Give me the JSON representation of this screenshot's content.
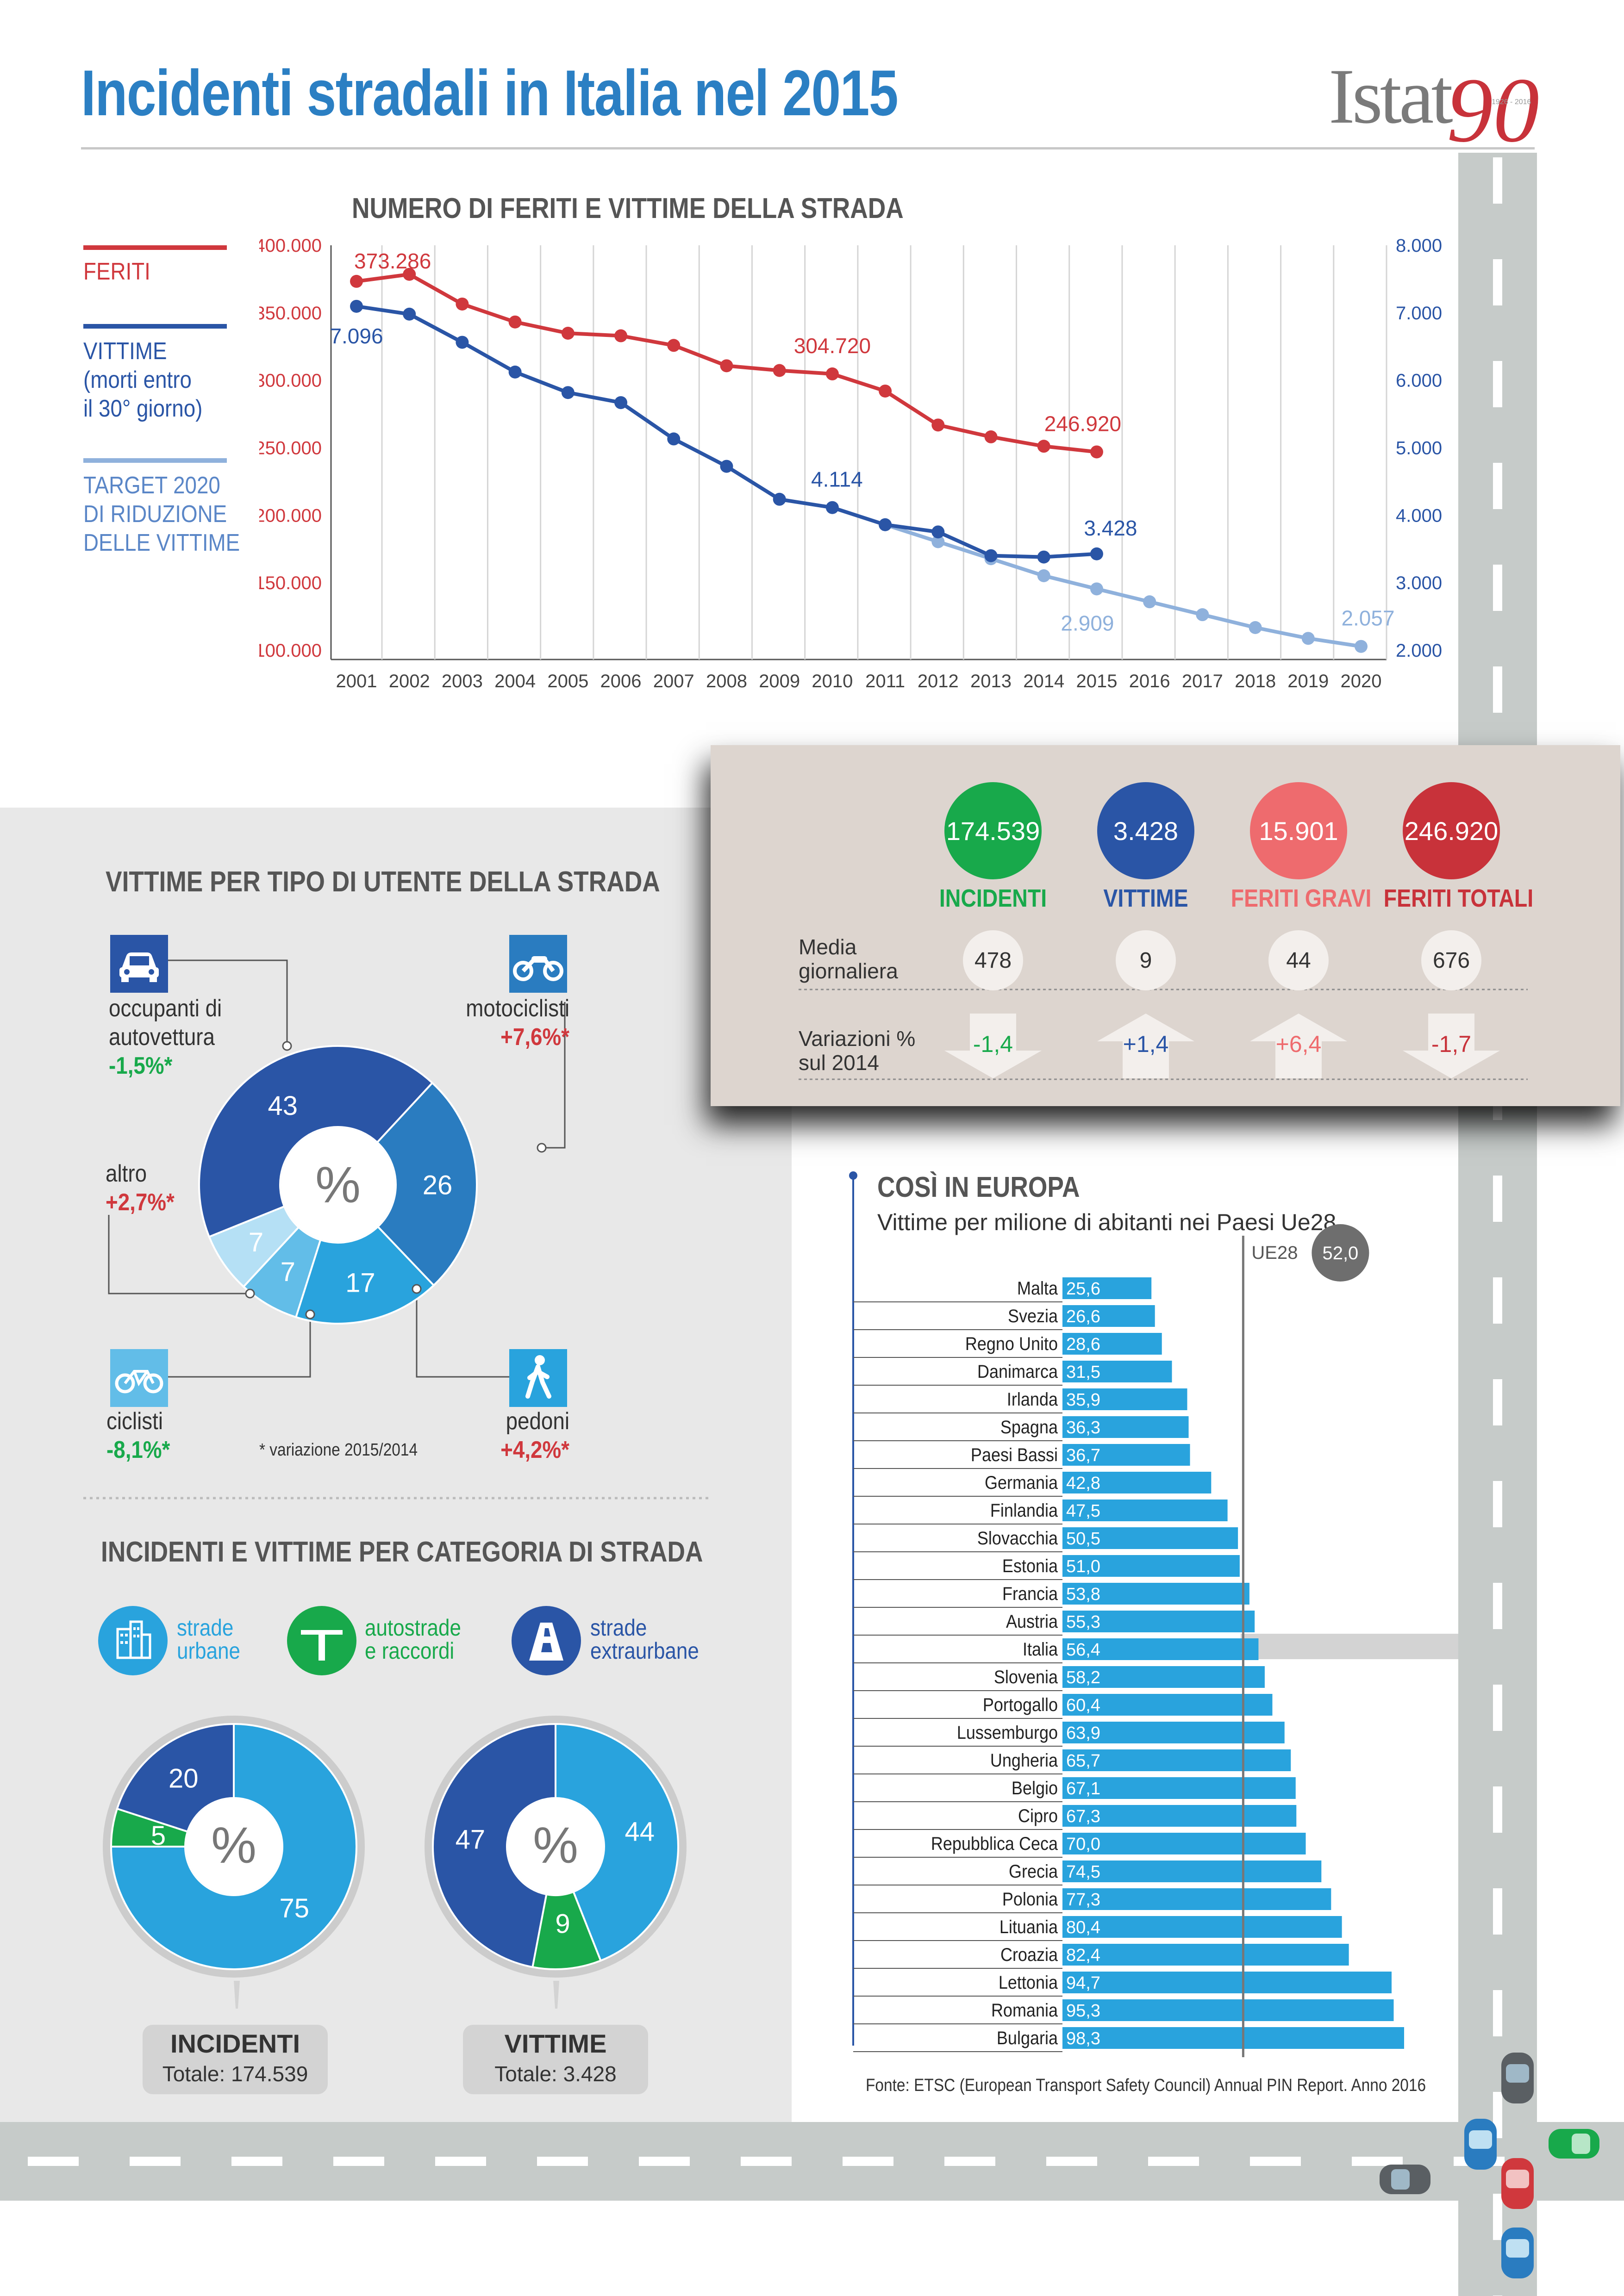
{
  "title": "Incidenti stradali in Italia nel 2015",
  "logo": {
    "text": "Istat",
    "mark": "90",
    "years": "1926 - 2016"
  },
  "colors": {
    "red": "#d0383d",
    "blue": "#2a55a6",
    "lightblue": "#8fb1dc",
    "cyan": "#29a3dd",
    "green": "#18a94b",
    "grey": "#8a8a8a"
  },
  "line_section": {
    "title": "NUMERO DI FERITI E VITTIME DELLA STRADA",
    "legend": {
      "feriti": "FERITI",
      "vittime": [
        "VITTIME",
        "(morti entro",
        "il 30° giorno)"
      ],
      "target": [
        "TARGET 2020",
        "DI RIDUZIONE",
        "DELLE VITTIME"
      ]
    }
  },
  "kpi": {
    "items": [
      {
        "value": "174.539",
        "label": "INCIDENTI",
        "daily": "478",
        "variation": "-1,4",
        "direction": "down",
        "color": "#18a94b",
        "label_color": "#18a94b"
      },
      {
        "value": "3.428",
        "label": "VITTIME",
        "daily": "9",
        "variation": "+1,4",
        "direction": "up",
        "color": "#2a55a6",
        "label_color": "#2a55a6"
      },
      {
        "value": "15.901",
        "label": "FERITI GRAVI",
        "daily": "44",
        "variation": "+6,4",
        "direction": "up",
        "color": "#ee6b6e",
        "label_color": "#ee6b6e"
      },
      {
        "value": "246.920",
        "label": "FERITI TOTALI",
        "daily": "676",
        "variation": "-1,7",
        "direction": "down",
        "color": "#c8323a",
        "label_color": "#c8323a"
      }
    ],
    "daily_label": [
      "Media",
      "giornaliera"
    ],
    "variation_label": [
      "Variazioni %",
      "sul 2014"
    ]
  },
  "user_section": {
    "title": "VITTIME PER TIPO DI UTENTE DELLA STRADA",
    "center": "%",
    "footnote": "* variazione 2015/2014",
    "callouts": [
      {
        "icon": "car-icon",
        "label": [
          "occupanti di",
          "autovettura"
        ],
        "change": "-1,5%*",
        "change_color": "#18a94b"
      },
      {
        "icon": "motorcycle-icon",
        "label": [
          "motociclisti"
        ],
        "change": "+7,6%*",
        "change_color": "#d0383d"
      },
      {
        "icon": "pedestrian-icon",
        "label": [
          "pedoni"
        ],
        "change": "+4,2%*",
        "change_color": "#d0383d"
      },
      {
        "icon": "bicycle-icon",
        "label": [
          "ciclisti"
        ],
        "change": "-8,1%*",
        "change_color": "#18a94b"
      },
      {
        "icon": "",
        "label": [
          "altro"
        ],
        "change": "+2,7%*",
        "change_color": "#d0383d"
      }
    ]
  },
  "road_section": {
    "title": "INCIDENTI E VITTIME PER CATEGORIA DI STRADA",
    "legend": [
      {
        "icon": "city-buildings-icon",
        "label": [
          "strade",
          "urbane"
        ],
        "color": "#29a3dd"
      },
      {
        "icon": "motorway-icon",
        "label": [
          "autostrade",
          "e raccordi"
        ],
        "color": "#18a94b"
      },
      {
        "icon": "rural-road-icon",
        "label": [
          "strade",
          "extraurbane"
        ],
        "color": "#2a55a6"
      }
    ],
    "center": "%",
    "donuts": [
      {
        "name": "INCIDENTI",
        "total": "Totale: 174.539"
      },
      {
        "name": "VITTIME",
        "total": "Totale: 3.428"
      }
    ]
  },
  "europe_section": {
    "title": "COSÌ IN EUROPA",
    "subtitle": "Vittime per milione di abitanti nei Paesi Ue28",
    "source": "Fonte: ETSC (European Transport Safety Council) Annual PIN Report. Anno 2016",
    "ue28_label": "UE28",
    "ue28_value": "52,0",
    "highlight": "Italia"
  },
  "chart_data": [
    {
      "type": "line",
      "title": "NUMERO DI FERITI E VITTIME DELLA STRADA",
      "x": [
        2001,
        2002,
        2003,
        2004,
        2005,
        2006,
        2007,
        2008,
        2009,
        2010,
        2011,
        2012,
        2013,
        2014,
        2015,
        2016,
        2017,
        2018,
        2019,
        2020
      ],
      "y_left": {
        "ylim": [
          100000,
          400000
        ],
        "ticks": [
          "100.000",
          "150.000",
          "200.000",
          "250.000",
          "300.000",
          "350.000",
          "400.000"
        ]
      },
      "y_right": {
        "ylim": [
          2000,
          8000
        ],
        "ticks": [
          "2.000",
          "3.000",
          "4.000",
          "5.000",
          "6.000",
          "7.000",
          "8.000"
        ]
      },
      "series": [
        {
          "name": "FERITI",
          "axis": "left",
          "color": "#d0383d",
          "x": [
            2001,
            2002,
            2003,
            2004,
            2005,
            2006,
            2007,
            2008,
            2009,
            2010,
            2011,
            2012,
            2013,
            2014,
            2015
          ],
          "values": [
            373286,
            378492,
            356475,
            343179,
            334858,
            332955,
            325850,
            310745,
            307258,
            304720,
            292019,
            266864,
            258093,
            251147,
            246920
          ],
          "labels": {
            "2001": "373.286",
            "2010": "304.720",
            "2015": "246.920"
          }
        },
        {
          "name": "VITTIME",
          "axis": "right",
          "color": "#2a55a6",
          "x": [
            2001,
            2002,
            2003,
            2004,
            2005,
            2006,
            2007,
            2008,
            2009,
            2010,
            2011,
            2012,
            2013,
            2014,
            2015
          ],
          "values": [
            7096,
            6980,
            6563,
            6122,
            5818,
            5669,
            5131,
            4725,
            4237,
            4114,
            3860,
            3753,
            3401,
            3381,
            3428
          ],
          "labels": {
            "2001": "7.096",
            "2010": "4.114",
            "2015": "3.428"
          }
        },
        {
          "name": "TARGET 2020 DI RIDUZIONE DELLE VITTIME",
          "axis": "right",
          "color": "#8fb1dc",
          "x": [
            2011,
            2012,
            2013,
            2014,
            2015,
            2016,
            2017,
            2018,
            2019,
            2020
          ],
          "values": [
            3860,
            3608,
            3356,
            3104,
            2909,
            2718,
            2527,
            2336,
            2176,
            2057
          ],
          "labels": {
            "2015": "2.909",
            "2020": "2.057"
          }
        }
      ]
    },
    {
      "type": "pie",
      "title": "VITTIME PER TIPO DI UTENTE DELLA STRADA",
      "categories": [
        "occupanti di autovettura",
        "motociclisti",
        "pedoni",
        "ciclisti",
        "altro"
      ],
      "values": [
        43,
        26,
        17,
        7,
        7
      ],
      "colors": [
        "#2a55a6",
        "#2a7cc0",
        "#29a3dd",
        "#62bde8",
        "#b5e0f5"
      ]
    },
    {
      "type": "pie",
      "title": "INCIDENTI",
      "categories": [
        "strade urbane",
        "autostrade e raccordi",
        "strade extraurbane"
      ],
      "values": [
        75,
        5,
        20
      ],
      "colors": [
        "#29a3dd",
        "#18a94b",
        "#2a55a6"
      ]
    },
    {
      "type": "pie",
      "title": "VITTIME",
      "categories": [
        "strade urbane",
        "autostrade e raccordi",
        "strade extraurbane"
      ],
      "values": [
        44,
        9,
        47
      ],
      "colors": [
        "#29a3dd",
        "#18a94b",
        "#2a55a6"
      ]
    },
    {
      "type": "bar",
      "title": "Vittime per milione di abitanti nei Paesi Ue28",
      "categories": [
        "Malta",
        "Svezia",
        "Regno Unito",
        "Danimarca",
        "Irlanda",
        "Spagna",
        "Paesi Bassi",
        "Germania",
        "Finlandia",
        "Slovacchia",
        "Estonia",
        "Francia",
        "Austria",
        "Italia",
        "Slovenia",
        "Portogallo",
        "Lussemburgo",
        "Ungheria",
        "Belgio",
        "Cipro",
        "Repubblica Ceca",
        "Grecia",
        "Polonia",
        "Lituania",
        "Croazia",
        "Lettonia",
        "Romania",
        "Bulgaria"
      ],
      "values": [
        25.6,
        26.6,
        28.6,
        31.5,
        35.9,
        36.3,
        36.7,
        42.8,
        47.5,
        50.5,
        51.0,
        53.8,
        55.3,
        56.4,
        58.2,
        60.4,
        63.9,
        65.7,
        67.1,
        67.3,
        70.0,
        74.5,
        77.3,
        80.4,
        82.4,
        94.7,
        95.3,
        98.3
      ],
      "value_labels": [
        "25,6",
        "26,6",
        "28,6",
        "31,5",
        "35,9",
        "36,3",
        "36,7",
        "42,8",
        "47,5",
        "50,5",
        "51,0",
        "53,8",
        "55,3",
        "56,4",
        "58,2",
        "60,4",
        "63,9",
        "65,7",
        "67,1",
        "67,3",
        "70,0",
        "74,5",
        "77,3",
        "80,4",
        "82,4",
        "94,7",
        "95,3",
        "98,3"
      ],
      "reference": {
        "label": "UE28",
        "value": 52.0
      },
      "xlim": [
        0,
        100
      ]
    }
  ]
}
